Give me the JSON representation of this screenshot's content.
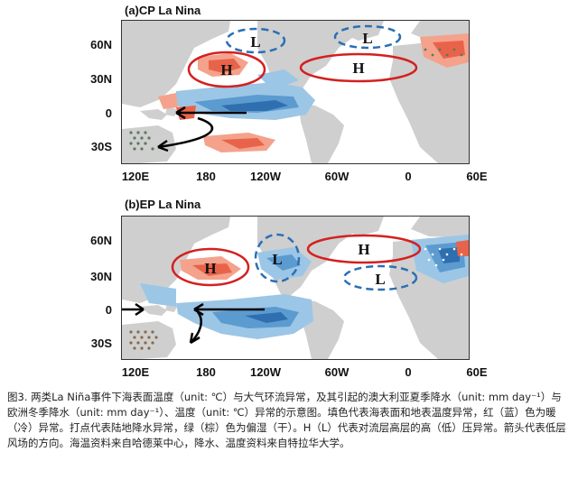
{
  "panels": [
    {
      "title": "(a)CP La Nina",
      "lat_ticks": [
        "60N",
        "30N",
        "0",
        "30S"
      ],
      "lon_ticks": [
        "120E",
        "180",
        "120W",
        "60W",
        "0",
        "60E"
      ],
      "pressure_labels": [
        {
          "text": "L",
          "kind": "low"
        },
        {
          "text": "L",
          "kind": "low"
        },
        {
          "text": "H",
          "kind": "high"
        },
        {
          "text": "H",
          "kind": "high"
        }
      ]
    },
    {
      "title": "(b)EP La Nina",
      "lat_ticks": [
        "60N",
        "30N",
        "0",
        "30S"
      ],
      "lon_ticks": [
        "120E",
        "180",
        "120W",
        "60W",
        "0",
        "60E"
      ],
      "pressure_labels": [
        {
          "text": "H",
          "kind": "high"
        },
        {
          "text": "L",
          "kind": "low"
        },
        {
          "text": "H",
          "kind": "high"
        },
        {
          "text": "L",
          "kind": "low"
        }
      ]
    }
  ],
  "colors": {
    "warm": "#e8634a",
    "warm_light": "#f4a28c",
    "cold": "#5b9bd0",
    "cold_dark": "#2f6fb0",
    "land": "#cfcfcf",
    "high_outline": "#d42020",
    "low_outline": "#2a6fb5",
    "arrow": "#000000"
  },
  "caption": {
    "text": "图3. 两类La Niña事件下海表面温度（unit: ℃）与大气环流异常，及其引起的澳大利亚夏季降水（unit: mm day⁻¹）与欧洲冬季降水（unit: mm day⁻¹）、温度（unit: ℃）异常的示意图。填色代表海表面和地表温度异常，红（蓝）色为暖（冷）异常。打点代表陆地降水异常，绿（棕）色为偏湿（干）。H（L）代表对流层高层的高（低）压异常。箭头代表低层风场的方向。海温资料来自哈德莱中心，降水、温度资料来自特拉华大学。"
  }
}
